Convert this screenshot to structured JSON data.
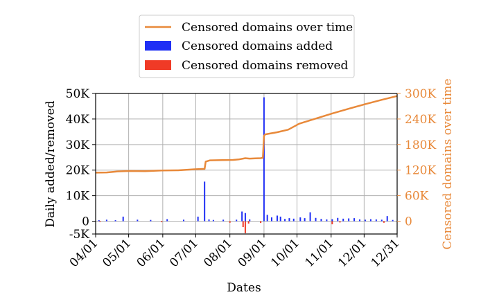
{
  "chart_data": {
    "type": "bar",
    "xlabel": "Dates",
    "ylabel_left": "Daily added/removed",
    "ylabel_right": "Censored domains over time",
    "x_ticks": [
      "04/01",
      "05/01",
      "06/01",
      "07/01",
      "08/01",
      "09/01",
      "10/01",
      "11/01",
      "12/01",
      "12/31"
    ],
    "x_tick_days": [
      0,
      30,
      61,
      91,
      122,
      153,
      183,
      214,
      244,
      274
    ],
    "x_range_days": [
      0,
      274
    ],
    "y_left": {
      "ylim": [
        -5000,
        50000
      ],
      "ticks": [
        -5000,
        0,
        10000,
        20000,
        30000,
        40000,
        50000
      ],
      "tick_labels": [
        "-5K",
        "0",
        "10K",
        "20K",
        "30K",
        "40K",
        "50K"
      ]
    },
    "y_right": {
      "ylim": [
        -30000,
        300000
      ],
      "ticks": [
        0,
        60000,
        120000,
        180000,
        240000,
        300000
      ],
      "tick_labels": [
        "0",
        "60K",
        "120K",
        "180K",
        "240K",
        "300K"
      ],
      "color": "#e8893a"
    },
    "grid": true,
    "legend": {
      "placement": "top-center",
      "entries": [
        {
          "label": "Censored domains over time",
          "kind": "line",
          "color": "#e8893a"
        },
        {
          "label": "Censored domains added",
          "kind": "bar",
          "color": "#1f2ff5"
        },
        {
          "label": "Censored domains removed",
          "kind": "bar",
          "color": "#f03a26"
        }
      ]
    },
    "series": [
      {
        "name": "Censored domains over time",
        "axis": "right",
        "color": "#e8893a",
        "x_days": [
          0,
          10,
          20,
          30,
          45,
          60,
          75,
          90,
          99,
          100,
          104,
          115,
          125,
          130,
          136,
          140,
          145,
          150,
          152,
          153,
          154,
          165,
          175,
          185,
          200,
          215,
          230,
          245,
          260,
          274
        ],
        "values": [
          114000,
          114500,
          117000,
          118000,
          117500,
          119000,
          119500,
          122000,
          123000,
          140000,
          143000,
          143500,
          144000,
          145000,
          148000,
          147000,
          147500,
          148000,
          149000,
          200000,
          204000,
          209000,
          215000,
          229000,
          241000,
          253000,
          264000,
          275000,
          285000,
          294000
        ]
      },
      {
        "name": "Censored domains added",
        "axis": "left",
        "color": "#1f2ff5",
        "x_days": [
          3,
          10,
          18,
          25,
          38,
          50,
          65,
          80,
          93,
          99,
          103,
          107,
          116,
          128,
          133,
          136,
          140,
          153,
          156,
          160,
          165,
          168,
          172,
          176,
          180,
          186,
          190,
          195,
          200,
          205,
          210,
          215,
          220,
          225,
          230,
          235,
          240,
          245,
          250,
          255,
          260,
          265,
          270
        ],
        "values": [
          400,
          600,
          400,
          1800,
          600,
          500,
          800,
          600,
          1800,
          15500,
          700,
          500,
          600,
          600,
          3800,
          3200,
          700,
          48500,
          2500,
          1500,
          2200,
          1800,
          900,
          1200,
          1000,
          1500,
          1200,
          3500,
          1300,
          900,
          700,
          800,
          1300,
          1000,
          1100,
          1200,
          700,
          600,
          800,
          700,
          600,
          2000,
          500
        ]
      },
      {
        "name": "Censored domains removed",
        "axis": "left",
        "color": "#f03a26",
        "x_days": [
          4,
          60,
          122,
          134,
          136,
          139,
          150,
          215,
          222,
          262
        ],
        "values": [
          -300,
          -400,
          -600,
          -2300,
          -4700,
          -900,
          -700,
          -1200,
          -500,
          -600
        ]
      }
    ]
  }
}
